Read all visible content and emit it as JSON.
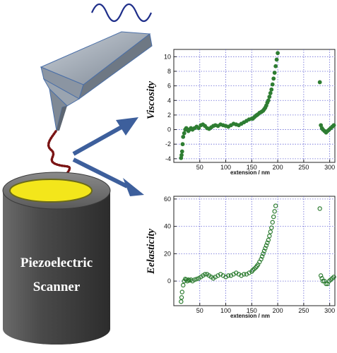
{
  "scanner": {
    "line1": "Piezoelectric",
    "line2": "Scanner"
  },
  "colors": {
    "marker": "#2e7d32",
    "grid": "#6a6ad6",
    "arrow": "#3d5f9c",
    "chain": "#7a1414",
    "sample": "#f3e61b",
    "cylinder": "#5b5b5b"
  },
  "chart_data": [
    {
      "type": "scatter",
      "ylabel": "Viscosity",
      "xlabel": "extension / nm",
      "xlim": [
        0,
        310
      ],
      "ylim": [
        -4.5,
        11
      ],
      "xticks": [
        50,
        100,
        150,
        200,
        250,
        300
      ],
      "yticks": [
        -4,
        -2,
        0,
        2,
        4,
        6,
        8,
        10
      ],
      "grid": true,
      "series": [
        {
          "x": [
            14,
            15,
            16,
            17,
            18,
            20,
            22,
            24,
            26,
            28,
            30,
            33,
            36,
            40,
            44,
            48,
            52,
            56,
            60,
            64,
            68,
            72,
            76,
            80,
            85,
            90,
            95,
            100,
            105,
            110,
            115,
            120,
            125,
            130,
            135,
            140,
            145,
            150,
            152,
            155,
            158,
            160,
            162,
            165,
            168,
            170,
            172,
            174,
            176,
            178,
            180,
            182,
            184,
            186,
            188,
            190,
            192,
            194,
            196,
            198,
            200,
            281,
            283,
            285,
            287,
            290,
            293,
            296,
            299,
            302,
            305,
            308
          ],
          "y": [
            -3.9,
            -3.5,
            -3,
            -2,
            -1,
            -0.5,
            0,
            0.2,
            0,
            -0.2,
            0,
            0.2,
            0,
            0.2,
            0.4,
            0.2,
            0.6,
            0.7,
            0.5,
            0.2,
            0.1,
            0.3,
            0.5,
            0.6,
            0.5,
            0.7,
            0.6,
            0.5,
            0.4,
            0.6,
            0.8,
            0.7,
            0.6,
            0.8,
            1.0,
            1.2,
            1.4,
            1.5,
            1.5,
            1.7,
            1.9,
            2.0,
            2.1,
            2.3,
            2.4,
            2.5,
            2.6,
            2.8,
            3.0,
            3.3,
            3.7,
            4.0,
            4.5,
            5.0,
            5.5,
            6.2,
            7.0,
            7.8,
            8.7,
            9.6,
            10.5,
            6.5,
            0.6,
            0.2,
            0,
            -0.2,
            -0.4,
            -0.2,
            0,
            0.2,
            0.4,
            0.6
          ]
        }
      ]
    },
    {
      "type": "scatter",
      "ylabel": "Eelasticity",
      "xlabel": "extension / nm",
      "xlim": [
        0,
        310
      ],
      "ylim": [
        -18,
        62
      ],
      "xticks": [
        50,
        100,
        150,
        200,
        250,
        300
      ],
      "yticks": [
        0,
        20,
        40,
        60
      ],
      "grid": true,
      "series": [
        {
          "x": [
            14,
            15,
            16,
            18,
            20,
            22,
            24,
            26,
            28,
            30,
            33,
            36,
            40,
            44,
            48,
            52,
            56,
            60,
            64,
            68,
            72,
            76,
            80,
            85,
            90,
            95,
            100,
            105,
            110,
            115,
            120,
            125,
            130,
            135,
            140,
            145,
            150,
            152,
            155,
            158,
            160,
            162,
            165,
            168,
            170,
            172,
            174,
            176,
            178,
            180,
            182,
            184,
            186,
            188,
            190,
            192,
            194,
            196,
            281,
            283,
            285,
            287,
            290,
            293,
            296,
            299,
            302,
            305,
            308
          ],
          "y": [
            -15,
            -12,
            -8,
            -3,
            0,
            1.5,
            1,
            0,
            1,
            0.5,
            1,
            0,
            1,
            1.5,
            2,
            3,
            4,
            5,
            5,
            4,
            3,
            2,
            3,
            4,
            5,
            4,
            3,
            4,
            4,
            5,
            6,
            5,
            4,
            5,
            5,
            6,
            7,
            8,
            9,
            10,
            11,
            12,
            14,
            16,
            18,
            20,
            22,
            24,
            26,
            28,
            30,
            33,
            36,
            39,
            43,
            47,
            51,
            55,
            53,
            4,
            2,
            0,
            0,
            -2,
            -2,
            0,
            1,
            2,
            3
          ]
        }
      ]
    }
  ]
}
